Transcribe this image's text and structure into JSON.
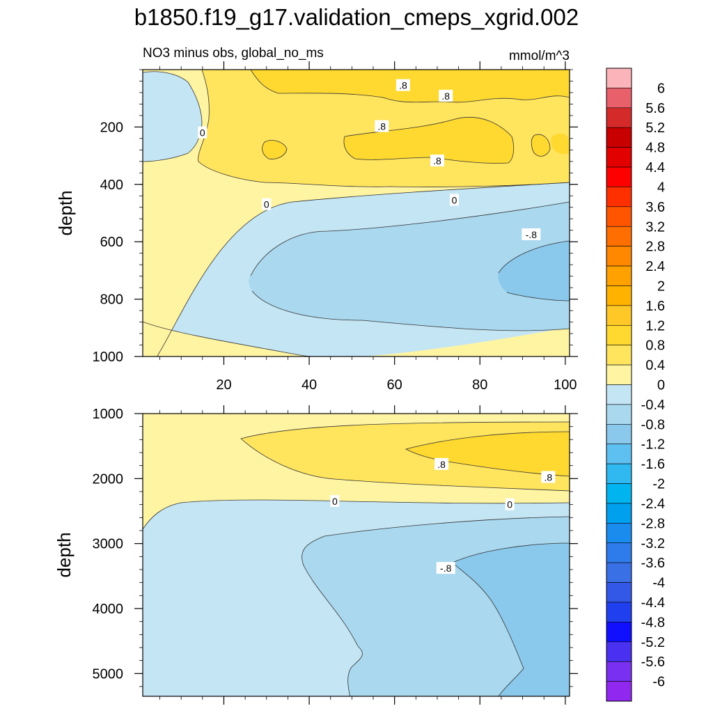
{
  "figure": {
    "title": "b1850.f19_g17.validation_cmeps_xgrid.002",
    "subtitle_left": "NO3 minus obs, global_no_ms",
    "subtitle_right": "mmol/m^3"
  },
  "chart_data": [
    {
      "type": "contour",
      "panel": "upper",
      "title": "b1850.f19_g17.validation_cmeps_xgrid.002",
      "subtitle": "NO3 minus obs, global_no_ms",
      "units": "mmol/m^3",
      "xlabel": "",
      "ylabel": "depth",
      "xlim": [
        1,
        101
      ],
      "ylim": [
        0,
        1000
      ],
      "y_inverted": true,
      "x_ticks": [
        20,
        40,
        60,
        80,
        100
      ],
      "y_ticks": [
        200,
        400,
        600,
        800,
        1000
      ],
      "contour_labels": [
        {
          "text": ".8",
          "x": 62,
          "y": 55
        },
        {
          "text": ".8",
          "x": 72,
          "y": 92
        },
        {
          "text": "0",
          "x": 15,
          "y": 220
        },
        {
          "text": ".8",
          "x": 57,
          "y": 198
        },
        {
          "text": ".8",
          "x": 70,
          "y": 318
        },
        {
          "text": "0",
          "x": 30,
          "y": 470
        },
        {
          "text": "0",
          "x": 74,
          "y": 455
        },
        {
          "text": "-.8",
          "x": 92,
          "y": 575
        }
      ]
    },
    {
      "type": "contour",
      "panel": "lower",
      "xlabel": "",
      "ylabel": "depth",
      "xlim": [
        1,
        101
      ],
      "ylim": [
        1000,
        5350
      ],
      "y_inverted": true,
      "y_ticks": [
        1000,
        2000,
        3000,
        4000,
        5000
      ],
      "contour_labels": [
        {
          "text": ".8",
          "x": 71,
          "y": 1780
        },
        {
          "text": ".8",
          "x": 96,
          "y": 1980
        },
        {
          "text": "0",
          "x": 46,
          "y": 2350
        },
        {
          "text": "0",
          "x": 87,
          "y": 2400
        },
        {
          "text": "-.8",
          "x": 72,
          "y": 3380
        }
      ]
    },
    {
      "type": "colorbar",
      "levels": [
        "6",
        "5.6",
        "5.2",
        "4.8",
        "4.4",
        "4",
        "3.6",
        "3.2",
        "2.8",
        "2.4",
        "2",
        "1.6",
        "1.2",
        "0.8",
        "0.4",
        "0",
        "-0.4",
        "-0.8",
        "-1.2",
        "-1.6",
        "-2",
        "-2.4",
        "-2.8",
        "-3.2",
        "-3.6",
        "-4",
        "-4.4",
        "-4.8",
        "-5.2",
        "-5.6",
        "-6"
      ],
      "colors": [
        "#fbb4b9",
        "#e8606a",
        "#d42a2a",
        "#c80000",
        "#e20000",
        "#ff0000",
        "#ff3000",
        "#ff5500",
        "#ff6e00",
        "#ff8800",
        "#ffa100",
        "#ffb300",
        "#ffc826",
        "#ffd92f",
        "#ffe45e",
        "#fff4a2",
        "#c4e5f3",
        "#a9d8ef",
        "#8ac8ec",
        "#5ec0f0",
        "#30b8f0",
        "#00b4f0",
        "#00a0ef",
        "#1a8cee",
        "#2e7ceb",
        "#3a70e6",
        "#3358e8",
        "#2040f0",
        "#1010ff",
        "#4a30f0",
        "#7a30f0",
        "#9028f0"
      ]
    }
  ]
}
